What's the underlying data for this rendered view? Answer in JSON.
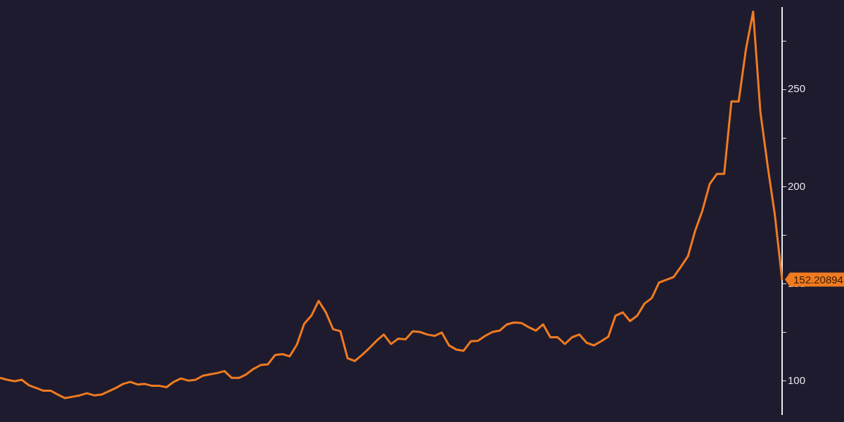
{
  "chart_data": {
    "type": "line",
    "categories": [
      null,
      null,
      null,
      null,
      null,
      null,
      null,
      null,
      null,
      null,
      null,
      null,
      null,
      null,
      null,
      null,
      null,
      null,
      null,
      null,
      null,
      null,
      null,
      null,
      null,
      null,
      null,
      null,
      null,
      null,
      null,
      null,
      null,
      null,
      null,
      null,
      null,
      null,
      null,
      null,
      null,
      null,
      null,
      null,
      null,
      null,
      null,
      null,
      null,
      null,
      null,
      null,
      null,
      null,
      null,
      null,
      null,
      null,
      null,
      null,
      null,
      null,
      null,
      null,
      null,
      null,
      null,
      null,
      null,
      null,
      null,
      null,
      null,
      null,
      null,
      null,
      null,
      null,
      null,
      null,
      null,
      null,
      null,
      null,
      null,
      null,
      null,
      null,
      null,
      null,
      null,
      null,
      null,
      null,
      null,
      null,
      null,
      null,
      null,
      null,
      null,
      null,
      null,
      null,
      null,
      null,
      null,
      null,
      null
    ],
    "series": [
      {
        "color": "#f07b20",
        "values": [
          101.7,
          100.7,
          100,
          100.7,
          97.9,
          96.5,
          95.1,
          95.1,
          93.1,
          91.3,
          92,
          92.7,
          93.8,
          92.7,
          93.1,
          94.8,
          96.5,
          98.6,
          99.7,
          98.3,
          98.6,
          97.6,
          97.6,
          96.9,
          99.7,
          101.4,
          100.3,
          100.7,
          102.8,
          103.5,
          104.2,
          105.2,
          101.7,
          101.7,
          103.5,
          106.3,
          108.3,
          108.7,
          113.5,
          113.9,
          112.8,
          118.8,
          129.5,
          133.7,
          141.3,
          135.4,
          126.7,
          125.7,
          111.8,
          110.4,
          113.5,
          117,
          120.8,
          124,
          119.1,
          121.9,
          121.5,
          125.7,
          125.3,
          124,
          123.3,
          125,
          118.4,
          116.3,
          115.6,
          120.5,
          120.8,
          123.3,
          125.3,
          126,
          129.2,
          130.2,
          129.9,
          127.8,
          126,
          129.2,
          122.6,
          122.6,
          119.1,
          122.6,
          124,
          119.8,
          118.4,
          120.5,
          122.9,
          133.7,
          135.4,
          130.9,
          133.7,
          139.9,
          142.7,
          150.7,
          152.1,
          153.5,
          158.7,
          164.2,
          177.4,
          187.8,
          201.4,
          206.6,
          206.6,
          243.8,
          243.8,
          270.5,
          290,
          238.5,
          210.8,
          185.4,
          152.20894
        ],
        "value_labels": [
          null,
          null,
          null,
          null,
          null,
          null,
          null,
          null,
          null,
          null,
          null,
          null,
          null,
          null,
          null,
          null,
          null,
          null,
          null,
          null,
          null,
          null,
          null,
          null,
          null,
          null,
          null,
          null,
          null,
          null,
          null,
          null,
          null,
          null,
          null,
          null,
          null,
          null,
          null,
          null,
          null,
          null,
          null,
          null,
          null,
          null,
          null,
          null,
          null,
          null,
          null,
          null,
          null,
          null,
          null,
          null,
          null,
          null,
          null,
          null,
          null,
          null,
          null,
          null,
          null,
          null,
          null,
          null,
          null,
          null,
          null,
          null,
          null,
          null,
          null,
          null,
          null,
          null,
          null,
          null,
          null,
          null,
          null,
          null,
          null,
          null,
          null,
          null,
          null,
          null,
          null,
          null,
          null,
          null,
          null,
          null,
          null,
          null,
          null,
          null,
          null,
          null,
          null,
          null,
          null,
          null,
          null,
          null,
          "152.20894"
        ]
      }
    ],
    "ylim": [
      83,
      292
    ],
    "yticks": [
      100,
      {
        "value": 125,
        "label": null
      },
      150,
      {
        "value": 175,
        "label": null
      },
      200,
      {
        "value": 225,
        "label": null
      },
      250,
      {
        "value": 275,
        "label": null
      }
    ],
    "grid": false,
    "legend": false,
    "marker": "none",
    "line_style": "solid",
    "tick_labels": "y"
  }
}
